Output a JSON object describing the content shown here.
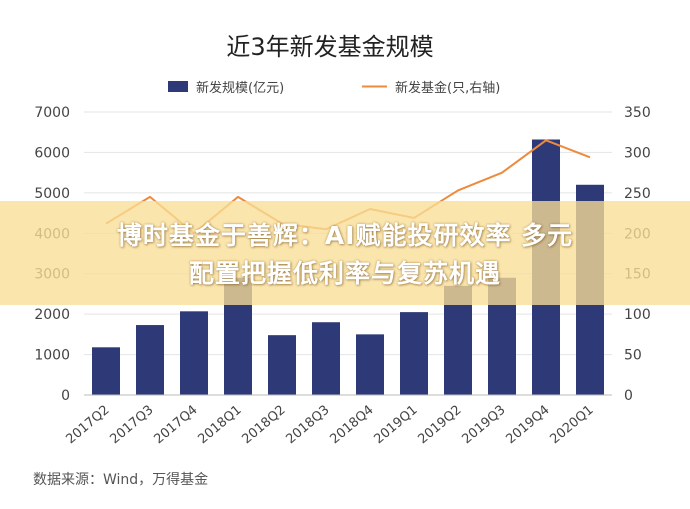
{
  "chart_data": {
    "type": "bar",
    "title": "近3年新发基金规模",
    "categories": [
      "2017Q2",
      "2017Q3",
      "2017Q4",
      "2018Q1",
      "2018Q2",
      "2018Q3",
      "2018Q4",
      "2019Q1",
      "2019Q2",
      "2019Q3",
      "2019Q4",
      "2020Q1"
    ],
    "series": [
      {
        "name": "新发规模(亿元)",
        "kind": "bar",
        "axis": "left",
        "color": "#2e3a78",
        "values": [
          1180,
          1730,
          2070,
          2900,
          1480,
          1800,
          1500,
          2050,
          2700,
          2900,
          6320,
          5200
        ]
      },
      {
        "name": "新发基金(只,右轴)",
        "kind": "line",
        "axis": "right",
        "color": "#ee8a3c",
        "values": [
          212,
          245,
          200,
          245,
          212,
          205,
          230,
          219,
          253,
          275,
          315,
          294
        ]
      }
    ],
    "left_axis": {
      "ylim": [
        0,
        7000
      ],
      "ticks": [
        "0",
        "1000",
        "2000",
        "3000",
        "4000",
        "5000",
        "6000",
        "7000"
      ]
    },
    "right_axis": {
      "ylim": [
        0,
        350
      ],
      "ticks": [
        "0",
        "50",
        "100",
        "150",
        "200",
        "250",
        "300",
        "350"
      ]
    },
    "legend_position": "top-center",
    "grid": true,
    "source": "数据来源：Wind，万得基金"
  },
  "banner": {
    "line1": "博时基金于善辉：AI赋能投研效率 多元",
    "line2": "配置把握低利率与复苏机遇"
  }
}
